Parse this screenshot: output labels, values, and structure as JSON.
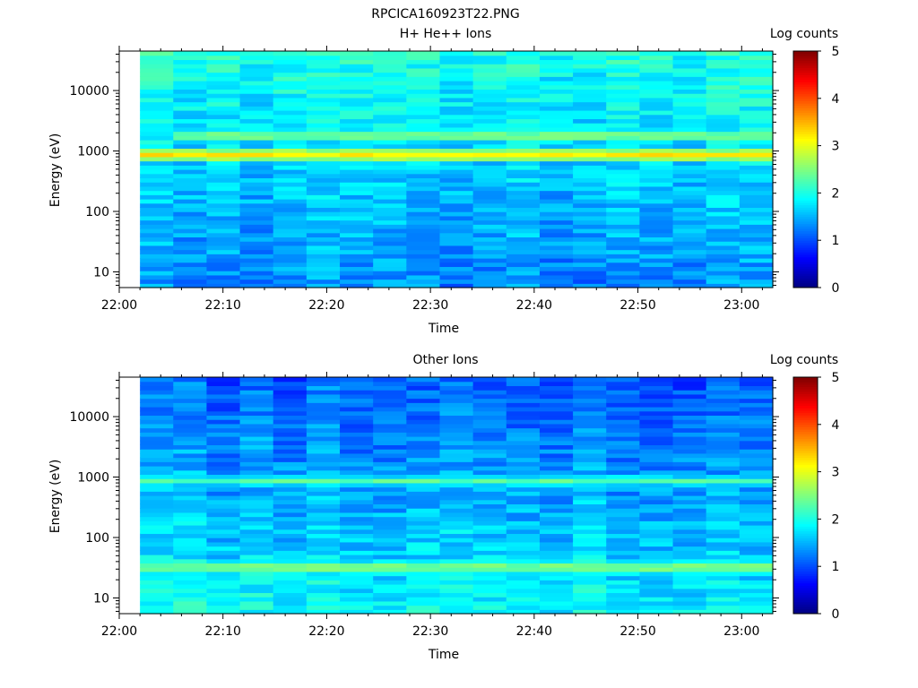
{
  "figure_title": "RPCICA160923T22.PNG",
  "chart_data": [
    {
      "type": "heatmap",
      "title": "H+ He++ Ions",
      "xlabel": "Time",
      "ylabel": "Energy (eV)",
      "x_ticks": [
        "22:00",
        "22:10",
        "22:20",
        "22:30",
        "22:40",
        "22:50",
        "23:00"
      ],
      "y_ticks": [
        "10",
        "100",
        "1000",
        "10000"
      ],
      "y_scale": "log",
      "y_range": [
        5.5,
        45000
      ],
      "x_range": [
        "22:00",
        "23:03"
      ],
      "data_start": "22:02",
      "colorbar": {
        "label": "Log counts",
        "ticks": [
          "0",
          "1",
          "2",
          "3",
          "4",
          "5"
        ],
        "range": [
          0,
          5
        ]
      },
      "colormap": [
        "#00007f",
        "#0000ff",
        "#007fff",
        "#00ffff",
        "#7fff7f",
        "#ffff00",
        "#ff7f00",
        "#ff0000",
        "#7f0000"
      ],
      "features": [
        {
          "energy_eV": 900,
          "log_counts": 3.2,
          "description_band": "peak"
        },
        {
          "energy_eV": 1850,
          "log_counts": 2.4,
          "start": "22:05"
        }
      ],
      "background_log_counts": {
        "low_energy": 1.3,
        "high_energy": 2.0
      }
    },
    {
      "type": "heatmap",
      "title": "Other Ions",
      "xlabel": "Time",
      "ylabel": "Energy (eV)",
      "x_ticks": [
        "22:00",
        "22:10",
        "22:20",
        "22:30",
        "22:40",
        "22:50",
        "23:00"
      ],
      "y_ticks": [
        "10",
        "100",
        "1000",
        "10000"
      ],
      "y_scale": "log",
      "y_range": [
        5.5,
        45000
      ],
      "x_range": [
        "22:00",
        "23:03"
      ],
      "data_start": "22:02",
      "colorbar": {
        "label": "Log counts",
        "ticks": [
          "0",
          "1",
          "2",
          "3",
          "4",
          "5"
        ],
        "range": [
          0,
          5
        ]
      },
      "colormap": [
        "#00007f",
        "#0000ff",
        "#007fff",
        "#00ffff",
        "#7fff7f",
        "#ffff00",
        "#ff7f00",
        "#ff0000",
        "#7f0000"
      ],
      "features": [
        {
          "energy_eV": 850,
          "log_counts": 2.3
        },
        {
          "energy_eV": 32,
          "log_counts": 2.4
        }
      ],
      "background_log_counts": {
        "low_energy": 1.9,
        "high_energy": 1.1
      }
    }
  ]
}
